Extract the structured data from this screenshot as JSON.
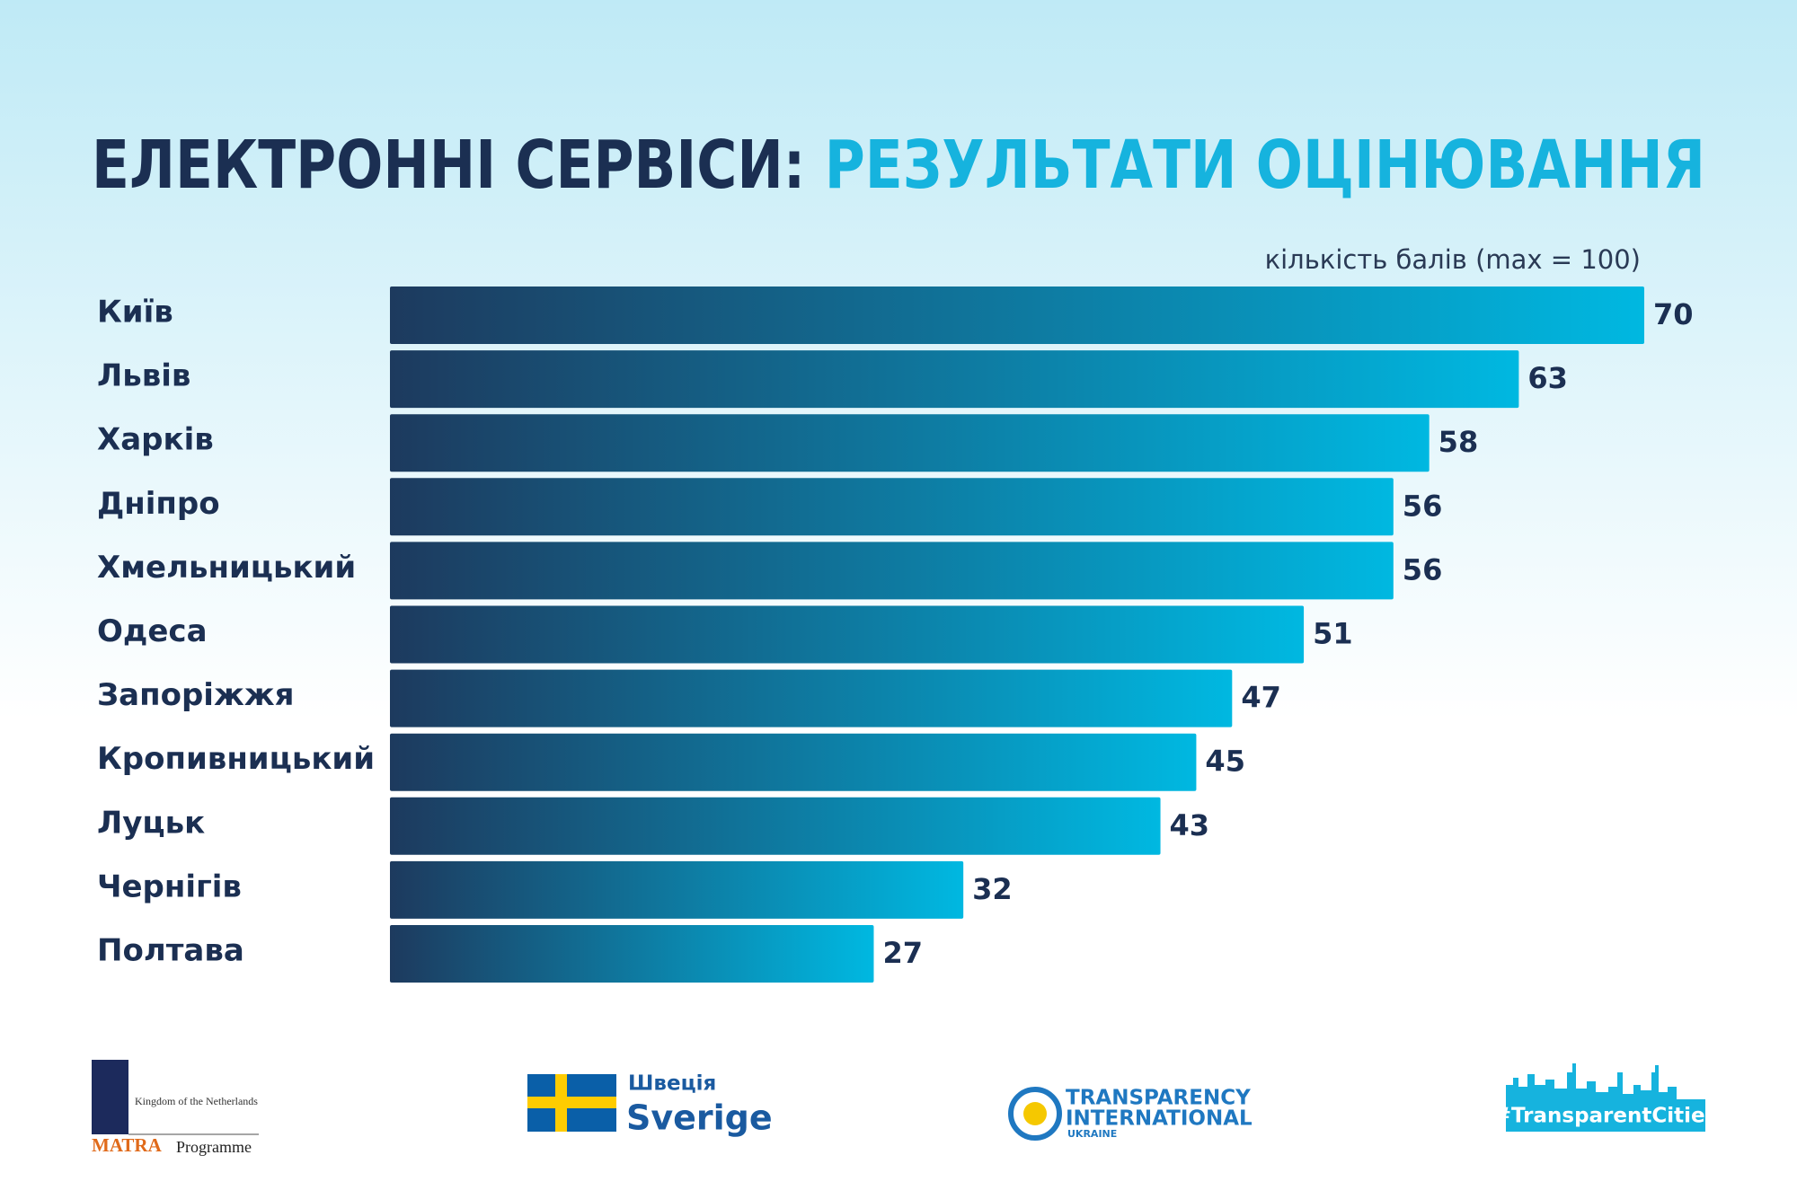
{
  "chart_data": {
    "type": "bar",
    "orientation": "horizontal",
    "title": "ЕЛЕКТРОННІ СЕРВІСИ:",
    "title_highlight": "РЕЗУЛЬТАТИ ОЦІНЮВАННЯ",
    "x_label": "кількість балів (max = 100)",
    "categories": [
      "Київ",
      "Львів",
      "Харків",
      "Дніпро",
      "Хмельницький",
      "Одеса",
      "Запоріжжя",
      "Кропивницький",
      "Луцьк",
      "Чернігів",
      "Полтава"
    ],
    "values": [
      70,
      63,
      58,
      56,
      56,
      51,
      47,
      45,
      43,
      32,
      27
    ],
    "xlim": [
      0,
      70
    ],
    "gradient": [
      "#1d3a5e",
      "#00b8e1"
    ]
  },
  "footer": {
    "netherlands": {
      "line1": "Kingdom of the Netherlands",
      "matra": "MATRA",
      "programme": "Programme"
    },
    "sweden": {
      "ua": "Швеція",
      "se": "Sverige"
    },
    "ti": {
      "line1": "TRANSPARENCY",
      "line2": "INTERNATIONAL",
      "line3": "UKRAINE"
    },
    "cities": "#TransparentCities"
  }
}
